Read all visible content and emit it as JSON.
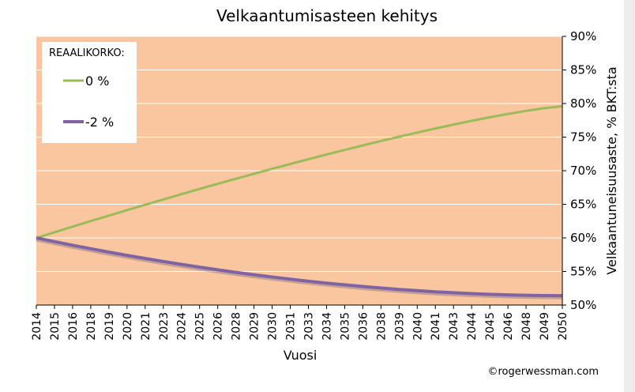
{
  "colors": {
    "plot_background": "#f9c6a0",
    "gridline": "#ffffff",
    "series_0": "#9bbb59",
    "series_1": "#8064a2"
  },
  "chart_data": {
    "type": "line",
    "title": "Velkaantumisasteen kehitys",
    "xlabel": "Vuosi",
    "ylabel": "Velkaantuneisuusaste, % BKT:sta",
    "y_axis_side": "right",
    "ylim": [
      50,
      90
    ],
    "yticks": [
      "50%",
      "55%",
      "60%",
      "65%",
      "70%",
      "75%",
      "80%",
      "85%",
      "90%"
    ],
    "x_ticks": [
      "2014",
      "2015",
      "2016",
      "2018",
      "2019",
      "2020",
      "2021",
      "2023",
      "2024",
      "2025",
      "2026",
      "2028",
      "2029",
      "2030",
      "2031",
      "2033",
      "2034",
      "2035",
      "2036",
      "2038",
      "2039",
      "2040",
      "2041",
      "2043",
      "2044",
      "2045",
      "2046",
      "2048",
      "2049",
      "2050"
    ],
    "grid": true,
    "legend": {
      "title": "REAALIKORKO:",
      "position": "top-left"
    },
    "series": [
      {
        "name": "0 %",
        "start": {
          "x": "2014",
          "y": 60
        },
        "end": {
          "x": "2050",
          "y": 79.6
        }
      },
      {
        "name": "-2 %",
        "start": {
          "x": "2014",
          "y": 60
        },
        "end": {
          "x": "2050",
          "y": 51.4
        }
      }
    ]
  },
  "credit": "©rogerwessman.com"
}
